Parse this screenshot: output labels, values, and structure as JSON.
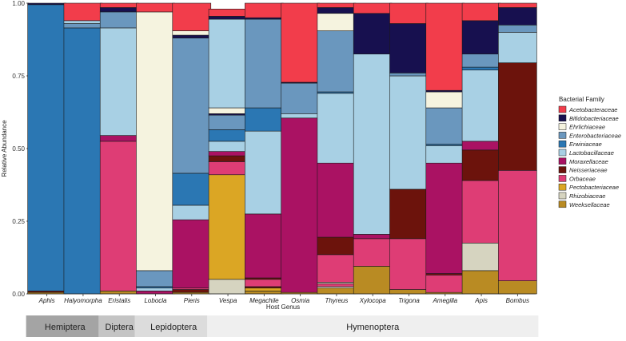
{
  "chart_data": {
    "type": "stacked-bar",
    "ylabel": "Relative Abundance",
    "xlabel": "Host Genus",
    "ylim": [
      0,
      1
    ],
    "yticks": [
      0.0,
      0.25,
      0.5,
      0.75,
      1.0
    ],
    "ytick_labels": [
      "0.00",
      "0.25",
      "0.50",
      "0.75",
      "1.00"
    ],
    "legend_title": "Bacterial Family",
    "legend_position": "right",
    "families": [
      {
        "name": "Acetobacteraceae",
        "color": "#f23d4b"
      },
      {
        "name": "Bifidobacteriaceae",
        "color": "#17104f"
      },
      {
        "name": "Ehrlichiaceae",
        "color": "#f5f3df"
      },
      {
        "name": "Enterobacteriaceae",
        "color": "#6a97be"
      },
      {
        "name": "Erwiniaceae",
        "color": "#2b77b3"
      },
      {
        "name": "Lactobacillaceae",
        "color": "#a8d0e4"
      },
      {
        "name": "Moraxellaceae",
        "color": "#aa1263"
      },
      {
        "name": "Neisseriaceae",
        "color": "#6c130c"
      },
      {
        "name": "Orbaceae",
        "color": "#de3d75"
      },
      {
        "name": "Pectobacteriaceae",
        "color": "#dba624"
      },
      {
        "name": "Rhizobiaceae",
        "color": "#d6d4c0"
      },
      {
        "name": "Weeksellaceae",
        "color": "#b98b23"
      }
    ],
    "categories": [
      "Aphis",
      "Halyomorpha",
      "Eristalis",
      "Lobocla",
      "Pieris",
      "Vespa",
      "Megachile",
      "Osmia",
      "Thyreus",
      "Xylocopa",
      "Trigona",
      "Amegilla",
      "Apis",
      "Bombus"
    ],
    "stacks": [
      [
        [
          "Weeksellaceae",
          0.005
        ],
        [
          "Neisseriaceae",
          0.005
        ],
        [
          "Erwiniaceae",
          0.985
        ],
        [
          "Bifidobacteriaceae",
          0.005
        ]
      ],
      [
        [
          "Erwiniaceae",
          0.915
        ],
        [
          "Enterobacteriaceae",
          0.015
        ],
        [
          "Lactobacillaceae",
          0.01
        ],
        [
          "Acetobacteraceae",
          0.06
        ]
      ],
      [
        [
          "Weeksellaceae",
          0.01
        ],
        [
          "Orbaceae",
          0.515
        ],
        [
          "Moraxellaceae",
          0.02
        ],
        [
          "Lactobacillaceae",
          0.37
        ],
        [
          "Enterobacteriaceae",
          0.055
        ],
        [
          "Bifidobacteriaceae",
          0.015
        ],
        [
          "Acetobacteraceae",
          0.015
        ]
      ],
      [
        [
          "Moraxellaceae",
          0.01
        ],
        [
          "Lactobacillaceae",
          0.01
        ],
        [
          "Erwiniaceae",
          0.005
        ],
        [
          "Enterobacteriaceae",
          0.055
        ],
        [
          "Ehrlichiaceae",
          0.89
        ],
        [
          "Acetobacteraceae",
          0.03
        ]
      ],
      [
        [
          "Weeksellaceae",
          0.005
        ],
        [
          "Neisseriaceae",
          0.01
        ],
        [
          "Orbaceae",
          0.005
        ],
        [
          "Moraxellaceae",
          0.235
        ],
        [
          "Lactobacillaceae",
          0.05
        ],
        [
          "Erwiniaceae",
          0.11
        ],
        [
          "Enterobacteriaceae",
          0.465
        ],
        [
          "Bifidobacteriaceae",
          0.01
        ],
        [
          "Ehrlichiaceae",
          0.015
        ],
        [
          "Acetobacteraceae",
          0.095
        ]
      ],
      [
        [
          "Rhizobiaceae",
          0.05
        ],
        [
          "Pectobacteriaceae",
          0.36
        ],
        [
          "Orbaceae",
          0.045
        ],
        [
          "Neisseriaceae",
          0.02
        ],
        [
          "Moraxellaceae",
          0.015
        ],
        [
          "Lactobacillaceae",
          0.035
        ],
        [
          "Erwiniaceae",
          0.04
        ],
        [
          "Enterobacteriaceae",
          0.05
        ],
        [
          "Bifidobacteriaceae",
          0.005
        ],
        [
          "Ehrlichiaceae",
          0.02
        ],
        [
          "Lactobacillaceae",
          0.305
        ],
        [
          "Bifidobacteriaceae",
          0.01
        ],
        [
          "Acetobacteraceae",
          0.025
        ]
      ],
      [
        [
          "Weeksellaceae",
          0.01
        ],
        [
          "Pectobacteriaceae",
          0.01
        ],
        [
          "Neisseriaceae",
          0.005
        ],
        [
          "Orbaceae",
          0.025
        ],
        [
          "Neisseriaceae",
          0.005
        ],
        [
          "Moraxellaceae",
          0.22
        ],
        [
          "Lactobacillaceae",
          0.285
        ],
        [
          "Erwiniaceae",
          0.08
        ],
        [
          "Enterobacteriaceae",
          0.305
        ],
        [
          "Bifidobacteriaceae",
          0.005
        ],
        [
          "Acetobacteraceae",
          0.05
        ]
      ],
      [
        [
          "Weeksellaceae",
          0.005
        ],
        [
          "Moraxellaceae",
          0.6
        ],
        [
          "Lactobacillaceae",
          0.015
        ],
        [
          "Enterobacteriaceae",
          0.105
        ],
        [
          "Bifidobacteriaceae",
          0.003
        ],
        [
          "Acetobacteraceae",
          0.272
        ]
      ],
      [
        [
          "Weeksellaceae",
          0.02
        ],
        [
          "Ehrlichiaceae",
          0.005
        ],
        [
          "Orbaceae",
          0.01
        ],
        [
          "Rhizobiaceae",
          0.005
        ],
        [
          "Orbaceae",
          0.095
        ],
        [
          "Neisseriaceae",
          0.06
        ],
        [
          "Moraxellaceae",
          0.255
        ],
        [
          "Lactobacillaceae",
          0.24
        ],
        [
          "Erwiniaceae",
          0.005
        ],
        [
          "Enterobacteriaceae",
          0.21
        ],
        [
          "Ehrlichiaceae",
          0.06
        ],
        [
          "Bifidobacteriaceae",
          0.02
        ],
        [
          "Acetobacteraceae",
          0.015
        ]
      ],
      [
        [
          "Weeksellaceae",
          0.095
        ],
        [
          "Orbaceae",
          0.095
        ],
        [
          "Moraxellaceae",
          0.015
        ],
        [
          "Lactobacillaceae",
          0.62
        ],
        [
          "Bifidobacteriaceae",
          0.14
        ],
        [
          "Acetobacteraceae",
          0.035
        ]
      ],
      [
        [
          "Weeksellaceae",
          0.015
        ],
        [
          "Orbaceae",
          0.175
        ],
        [
          "Neisseriaceae",
          0.17
        ],
        [
          "Lactobacillaceae",
          0.39
        ],
        [
          "Enterobacteriaceae",
          0.01
        ],
        [
          "Bifidobacteriaceae",
          0.17
        ],
        [
          "Acetobacteraceae",
          0.07
        ]
      ],
      [
        [
          "Weeksellaceae",
          0.005
        ],
        [
          "Orbaceae",
          0.06
        ],
        [
          "Neisseriaceae",
          0.005
        ],
        [
          "Moraxellaceae",
          0.38
        ],
        [
          "Lactobacillaceae",
          0.06
        ],
        [
          "Erwiniaceae",
          0.005
        ],
        [
          "Enterobacteriaceae",
          0.125
        ],
        [
          "Ehrlichiaceae",
          0.055
        ],
        [
          "Bifidobacteriaceae",
          0.005
        ],
        [
          "Acetobacteraceae",
          0.3
        ]
      ],
      [
        [
          "Weeksellaceae",
          0.08
        ],
        [
          "Rhizobiaceae",
          0.095
        ],
        [
          "Orbaceae",
          0.215
        ],
        [
          "Neisseriaceae",
          0.105
        ],
        [
          "Moraxellaceae",
          0.03
        ],
        [
          "Lactobacillaceae",
          0.245
        ],
        [
          "Erwiniaceae",
          0.01
        ],
        [
          "Enterobacteriaceae",
          0.045
        ],
        [
          "Bifidobacteriaceae",
          0.115
        ],
        [
          "Acetobacteraceae",
          0.06
        ]
      ],
      [
        [
          "Weeksellaceae",
          0.045
        ],
        [
          "Orbaceae",
          0.38
        ],
        [
          "Neisseriaceae",
          0.37
        ],
        [
          "Lactobacillaceae",
          0.105
        ],
        [
          "Enterobacteriaceae",
          0.025
        ],
        [
          "Bifidobacteriaceae",
          0.06
        ],
        [
          "Acetobacteraceae",
          0.015
        ]
      ]
    ]
  },
  "orders": [
    {
      "name": "Hemiptera",
      "from": 0,
      "to": 1,
      "color": "#a4a4a4"
    },
    {
      "name": "Diptera",
      "from": 2,
      "to": 2,
      "color": "#c4c4c4"
    },
    {
      "name": "Lepidoptera",
      "from": 3,
      "to": 4,
      "color": "#dcdcdc"
    },
    {
      "name": "Hymenoptera",
      "from": 5,
      "to": 13,
      "color": "#efefef"
    }
  ]
}
